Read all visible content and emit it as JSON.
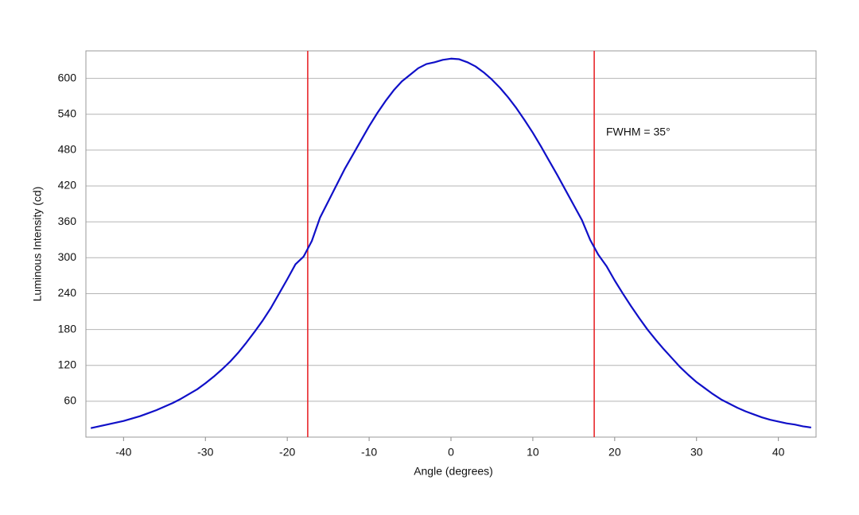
{
  "chart_data": {
    "type": "line",
    "xlabel": "Angle (degrees)",
    "ylabel": "Luminous Intensity (cd)",
    "annotation": "FWHM = 35°",
    "vlines": [
      -17.5,
      17.5
    ],
    "vline_color": "#e8262b",
    "x": [
      -44,
      -43,
      -42,
      -41,
      -40,
      -39,
      -38,
      -37,
      -36,
      -35,
      -34,
      -33,
      -32,
      -31,
      -30,
      -29,
      -28,
      -27,
      -26,
      -25,
      -24,
      -23,
      -22,
      -21,
      -20,
      -19,
      -18,
      -17,
      -16,
      -15,
      -14,
      -13,
      -12,
      -11,
      -10,
      -9,
      -8,
      -7,
      -6,
      -5,
      -4,
      -3,
      -2,
      -1,
      0,
      1,
      2,
      3,
      4,
      5,
      6,
      7,
      8,
      9,
      10,
      11,
      12,
      13,
      14,
      15,
      16,
      17,
      18,
      19,
      20,
      21,
      22,
      23,
      24,
      25,
      26,
      27,
      28,
      29,
      30,
      31,
      32,
      33,
      34,
      35,
      36,
      37,
      38,
      39,
      40,
      41,
      42,
      43,
      44
    ],
    "series": [
      {
        "name": "Intensity",
        "color": "#1010c8",
        "values": [
          15,
          18,
          21,
          24,
          27,
          31,
          35,
          40,
          45,
          51,
          57,
          64,
          72,
          80,
          90,
          101,
          113,
          126,
          141,
          158,
          176,
          195,
          216,
          240,
          264,
          289,
          302,
          328,
          367,
          394,
          421,
          448,
          472,
          496,
          520,
          542,
          562,
          580,
          595,
          606,
          617,
          624,
          627,
          631,
          633,
          632,
          627,
          620,
          610,
          598,
          584,
          568,
          550,
          530,
          509,
          486,
          462,
          438,
          413,
          388,
          363,
          330,
          305,
          286,
          262,
          240,
          219,
          199,
          180,
          163,
          147,
          132,
          117,
          104,
          92,
          82,
          72,
          63,
          56,
          49,
          43,
          38,
          33,
          29,
          26,
          23,
          21,
          18,
          16
        ]
      }
    ],
    "xlim": [
      -44.6,
      44.6
    ],
    "xticks": [
      -40,
      -30,
      -20,
      -10,
      0,
      10,
      20,
      30,
      40
    ],
    "ylim": [
      0,
      646
    ],
    "yticks": [
      60,
      120,
      180,
      240,
      300,
      360,
      420,
      480,
      540,
      600
    ],
    "grid": true
  }
}
